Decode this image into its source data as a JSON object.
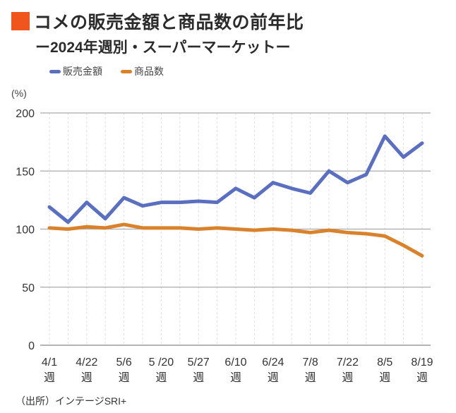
{
  "colors": {
    "title_mark": "#f0551e",
    "sales": "#5a6fbf",
    "items": "#d9822b"
  },
  "chart_data": {
    "type": "line",
    "title": "コメの販売金額と商品数の前年比",
    "subtitle": "ー2024年週別・スーパーマーケットー",
    "ylabel": "(%)",
    "xlabel": "",
    "ylim": [
      0,
      200
    ],
    "yticks": [
      0,
      50,
      100,
      150,
      200
    ],
    "x_tick_labels": [
      {
        "date": "4/1",
        "unit": "週"
      },
      {
        "date": "4/22",
        "unit": "週"
      },
      {
        "date": "5/6",
        "unit": "週"
      },
      {
        "date": "5 /20",
        "unit": "週"
      },
      {
        "date": "5/27",
        "unit": "週"
      },
      {
        "date": "6/10",
        "unit": "週"
      },
      {
        "date": "6/24",
        "unit": "週"
      },
      {
        "date": "7/8",
        "unit": "週"
      },
      {
        "date": "7/22",
        "unit": "週"
      },
      {
        "date": "8/5",
        "unit": "週"
      },
      {
        "date": "8/19",
        "unit": "週"
      }
    ],
    "grid": true,
    "legend_position": "top-left",
    "series": [
      {
        "name": "販売金額",
        "color": "#5a6fbf",
        "values": [
          119,
          106,
          123,
          109,
          127,
          120,
          123,
          123,
          124,
          123,
          135,
          127,
          140,
          135,
          131,
          150,
          140,
          147,
          180,
          162,
          174
        ]
      },
      {
        "name": "商品数",
        "color": "#d9822b",
        "values": [
          101,
          100,
          102,
          101,
          104,
          101,
          101,
          101,
          100,
          101,
          100,
          99,
          100,
          99,
          97,
          99,
          97,
          96,
          94,
          86,
          77
        ]
      }
    ],
    "source": "（出所）インテージSRI+"
  }
}
